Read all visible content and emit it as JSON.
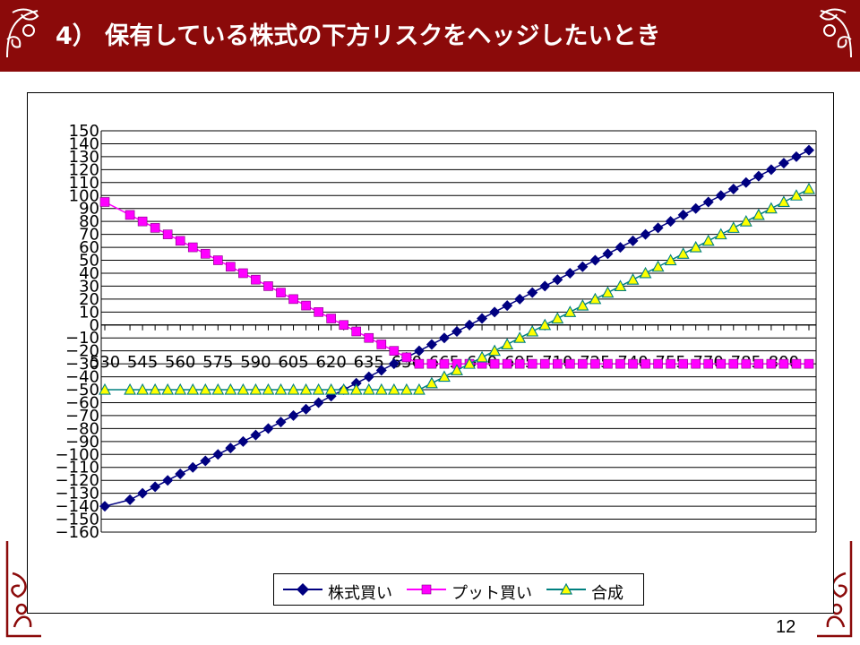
{
  "slide": {
    "title": "4） 保有している株式の下方リスクをヘッジしたいとき",
    "page_number": "12",
    "colors": {
      "title_bar": "#8b0a0a",
      "title_text": "#ffffff",
      "ornament": "#8b0a0a"
    }
  },
  "chart_data": {
    "type": "line",
    "title": "",
    "xlabel": "",
    "ylabel": "",
    "x": [
      530,
      540,
      545,
      550,
      555,
      560,
      565,
      570,
      575,
      580,
      585,
      590,
      595,
      600,
      605,
      610,
      615,
      620,
      625,
      630,
      635,
      640,
      645,
      650,
      655,
      660,
      665,
      670,
      675,
      680,
      685,
      690,
      695,
      700,
      705,
      710,
      715,
      720,
      725,
      730,
      735,
      740,
      745,
      750,
      755,
      760,
      765,
      770,
      775,
      780,
      785,
      790,
      795,
      800,
      805,
      810
    ],
    "x_tick_labels": [
      "530",
      "545",
      "560",
      "575",
      "590",
      "605",
      "620",
      "635",
      "650",
      "665",
      "680",
      "695",
      "710",
      "725",
      "740",
      "755",
      "770",
      "785",
      "800"
    ],
    "x_tick_values": [
      530,
      545,
      560,
      575,
      590,
      605,
      620,
      635,
      650,
      665,
      680,
      695,
      710,
      725,
      740,
      755,
      770,
      785,
      800
    ],
    "ylim": [
      -160,
      150
    ],
    "y_ticks": [
      150,
      140,
      130,
      120,
      110,
      100,
      90,
      80,
      70,
      60,
      50,
      40,
      30,
      20,
      10,
      0,
      -10,
      -20,
      -30,
      -40,
      -50,
      -60,
      -70,
      -80,
      -90,
      -100,
      -110,
      -120,
      -130,
      -140,
      -150,
      -160
    ],
    "grid": "horizontal",
    "legend_position": "bottom",
    "series": [
      {
        "name": "株式買い",
        "color": "#000080",
        "marker": "diamond",
        "values": [
          -140,
          -135,
          -130,
          -125,
          -120,
          -115,
          -110,
          -105,
          -100,
          -95,
          -90,
          -85,
          -80,
          -75,
          -70,
          -65,
          -60,
          -55,
          -50,
          -45,
          -40,
          -35,
          -30,
          -25,
          -20,
          -15,
          -10,
          -5,
          0,
          5,
          10,
          15,
          20,
          25,
          30,
          35,
          40,
          45,
          50,
          55,
          60,
          65,
          70,
          75,
          80,
          85,
          90,
          95,
          100,
          105,
          110,
          115,
          120,
          125,
          130,
          135
        ]
      },
      {
        "name": "プット買い",
        "color": "#ff00ff",
        "marker": "square",
        "values": [
          95,
          85,
          80,
          75,
          70,
          65,
          60,
          55,
          50,
          45,
          40,
          35,
          30,
          25,
          20,
          15,
          10,
          5,
          0,
          -5,
          -10,
          -15,
          -20,
          -25,
          -30,
          -30,
          -30,
          -30,
          -30,
          -30,
          -30,
          -30,
          -30,
          -30,
          -30,
          -30,
          -30,
          -30,
          -30,
          -30,
          -30,
          -30,
          -30,
          -30,
          -30,
          -30,
          -30,
          -30,
          -30,
          -30,
          -30,
          -30,
          -30,
          -30,
          -30,
          -30
        ]
      },
      {
        "name": "合成",
        "color": "#008080",
        "marker": "triangle",
        "marker_fill": "#ffff00",
        "values": [
          -50,
          -50,
          -50,
          -50,
          -50,
          -50,
          -50,
          -50,
          -50,
          -50,
          -50,
          -50,
          -50,
          -50,
          -50,
          -50,
          -50,
          -50,
          -50,
          -50,
          -50,
          -50,
          -50,
          -50,
          -50,
          -45,
          -40,
          -35,
          -30,
          -25,
          -20,
          -15,
          -10,
          -5,
          0,
          5,
          10,
          15,
          20,
          25,
          30,
          35,
          40,
          45,
          50,
          55,
          60,
          65,
          70,
          75,
          80,
          85,
          90,
          95,
          100,
          105
        ]
      }
    ]
  }
}
